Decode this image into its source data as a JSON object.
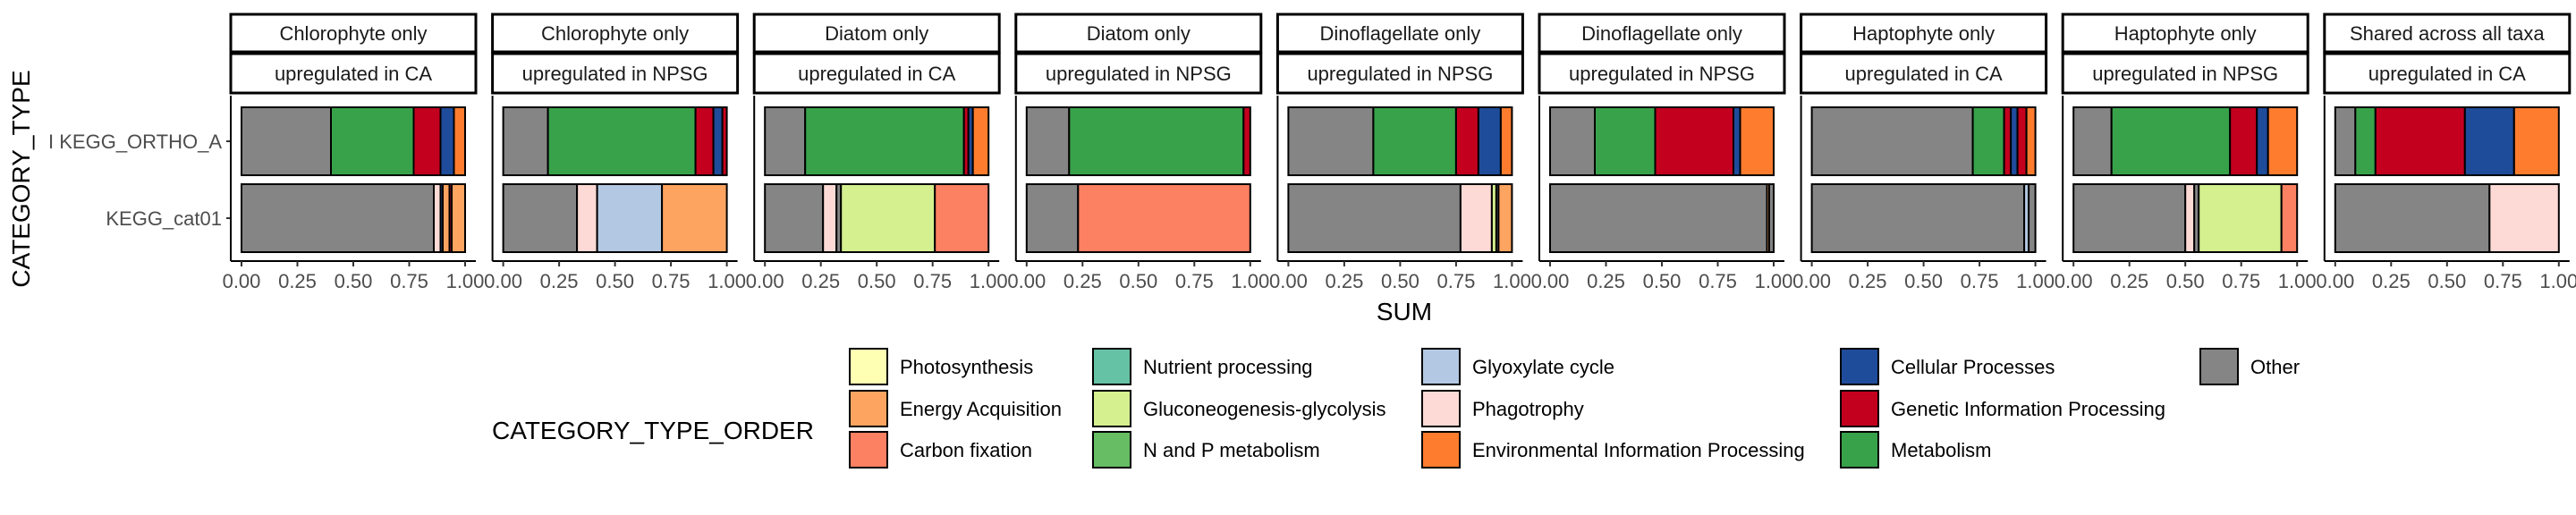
{
  "chart_data": {
    "type": "bar",
    "orientation": "horizontal",
    "stacked": true,
    "xlabel": "SUM",
    "ylabel": "CATEGORY_TYPE",
    "xlim": [
      0,
      1
    ],
    "x_ticks": [
      "0.00",
      "0.25",
      "0.50",
      "0.75",
      "1.00"
    ],
    "categories": [
      "KEGG_ORTHO_A",
      "KEGG_cat01"
    ],
    "category_tick_labels": [
      "I KEGG_ORTHO_A",
      "KEGG_cat01"
    ],
    "legend_title": "CATEGORY_TYPE_ORDER",
    "legend_position": "bottom",
    "legend": [
      {
        "name": "Photosynthesis",
        "color": "#FFFFB3"
      },
      {
        "name": "Energy Acquisition",
        "color": "#FDA460"
      },
      {
        "name": "Carbon fixation",
        "color": "#FC8062"
      },
      {
        "name": "Nutrient processing",
        "color": "#66C2A5"
      },
      {
        "name": "Gluconeogenesis-glycolysis",
        "color": "#D4F08F"
      },
      {
        "name": "N and P metabolism",
        "color": "#66BD63"
      },
      {
        "name": "Glyoxylate cycle",
        "color": "#B3C8E2"
      },
      {
        "name": "Phagotrophy",
        "color": "#FDDAD5"
      },
      {
        "name": "Environmental Information Processing",
        "color": "#FD7C2E"
      },
      {
        "name": "Cellular Processes",
        "color": "#1F4C9A"
      },
      {
        "name": "Genetic Information Processing",
        "color": "#C4001F"
      },
      {
        "name": "Metabolism",
        "color": "#38A24B"
      },
      {
        "name": "Other",
        "color": "#858585"
      }
    ],
    "panels": [
      {
        "strip1": "Chlorophyte only",
        "strip2": "upregulated in CA",
        "bars": {
          "KEGG_ORTHO_A": [
            [
              "Other",
              0.4
            ],
            [
              "Metabolism",
              0.37
            ],
            [
              "Genetic Information Processing",
              0.12
            ],
            [
              "Cellular Processes",
              0.06
            ],
            [
              "Environmental Information Processing",
              0.05
            ]
          ],
          "KEGG_cat01": [
            [
              "Other",
              0.86
            ],
            [
              "Phagotrophy",
              0.03
            ],
            [
              "Cellular Processes",
              0.01
            ],
            [
              "Energy Acquisition",
              0.03
            ],
            [
              "Genetic Information Processing",
              0.01
            ],
            [
              "Energy Acquisition",
              0.06
            ]
          ]
        }
      },
      {
        "strip1": "Chlorophyte only",
        "strip2": "upregulated in NPSG",
        "bars": {
          "KEGG_ORTHO_A": [
            [
              "Other",
              0.2
            ],
            [
              "Metabolism",
              0.66
            ],
            [
              "Genetic Information Processing",
              0.08
            ],
            [
              "Cellular Processes",
              0.04
            ],
            [
              "Genetic Information Processing",
              0.02
            ]
          ],
          "KEGG_cat01": [
            [
              "Other",
              0.33
            ],
            [
              "Phagotrophy",
              0.09
            ],
            [
              "Glyoxylate cycle",
              0.29
            ],
            [
              "Energy Acquisition",
              0.29
            ]
          ]
        }
      },
      {
        "strip1": "Diatom only",
        "strip2": "upregulated in CA",
        "bars": {
          "KEGG_ORTHO_A": [
            [
              "Other",
              0.18
            ],
            [
              "Metabolism",
              0.71
            ],
            [
              "Genetic Information Processing",
              0.02
            ],
            [
              "Cellular Processes",
              0.02
            ],
            [
              "Environmental Information Processing",
              0.07
            ]
          ],
          "KEGG_cat01": [
            [
              "Other",
              0.26
            ],
            [
              "Phagotrophy",
              0.06
            ],
            [
              "Other",
              0.02
            ],
            [
              "Gluconeogenesis-glycolysis",
              0.42
            ],
            [
              "Carbon fixation",
              0.24
            ]
          ]
        }
      },
      {
        "strip1": "Diatom only",
        "strip2": "upregulated in NPSG",
        "bars": {
          "KEGG_ORTHO_A": [
            [
              "Other",
              0.19
            ],
            [
              "Metabolism",
              0.78
            ],
            [
              "Genetic Information Processing",
              0.03
            ]
          ],
          "KEGG_cat01": [
            [
              "Other",
              0.23
            ],
            [
              "Carbon fixation",
              0.77
            ]
          ]
        }
      },
      {
        "strip1": "Dinoflagellate only",
        "strip2": "upregulated in NPSG",
        "bars": {
          "KEGG_ORTHO_A": [
            [
              "Other",
              0.38
            ],
            [
              "Metabolism",
              0.37
            ],
            [
              "Genetic Information Processing",
              0.1
            ],
            [
              "Cellular Processes",
              0.1
            ],
            [
              "Environmental Information Processing",
              0.05
            ]
          ],
          "KEGG_cat01": [
            [
              "Other",
              0.77
            ],
            [
              "Phagotrophy",
              0.14
            ],
            [
              "Gluconeogenesis-glycolysis",
              0.02
            ],
            [
              "Other",
              0.01
            ],
            [
              "Energy Acquisition",
              0.06
            ]
          ]
        }
      },
      {
        "strip1": "Dinoflagellate only",
        "strip2": "upregulated in NPSG",
        "bars": {
          "KEGG_ORTHO_A": [
            [
              "Other",
              0.2
            ],
            [
              "Metabolism",
              0.27
            ],
            [
              "Genetic Information Processing",
              0.35
            ],
            [
              "Cellular Processes",
              0.03
            ],
            [
              "Environmental Information Processing",
              0.15
            ]
          ],
          "KEGG_cat01": [
            [
              "Other",
              0.97
            ],
            [
              "Energy Acquisition",
              0.01
            ],
            [
              "Other",
              0.02
            ]
          ]
        }
      },
      {
        "strip1": "Haptophyte only",
        "strip2": "upregulated in CA",
        "bars": {
          "KEGG_ORTHO_A": [
            [
              "Other",
              0.72
            ],
            [
              "Metabolism",
              0.14
            ],
            [
              "Genetic Information Processing",
              0.03
            ],
            [
              "Cellular Processes",
              0.03
            ],
            [
              "Genetic Information Processing",
              0.04
            ],
            [
              "Environmental Information Processing",
              0.04
            ]
          ],
          "KEGG_cat01": [
            [
              "Other",
              0.95
            ],
            [
              "Glyoxylate cycle",
              0.02
            ],
            [
              "Other",
              0.03
            ]
          ]
        }
      },
      {
        "strip1": "Haptophyte only",
        "strip2": "upregulated in NPSG",
        "bars": {
          "KEGG_ORTHO_A": [
            [
              "Other",
              0.17
            ],
            [
              "Metabolism",
              0.53
            ],
            [
              "Genetic Information Processing",
              0.12
            ],
            [
              "Cellular Processes",
              0.05
            ],
            [
              "Environmental Information Processing",
              0.13
            ]
          ],
          "KEGG_cat01": [
            [
              "Other",
              0.5
            ],
            [
              "Phagotrophy",
              0.04
            ],
            [
              "Other",
              0.02
            ],
            [
              "Gluconeogenesis-glycolysis",
              0.37
            ],
            [
              "Carbon fixation",
              0.07
            ]
          ]
        }
      },
      {
        "strip1": "Shared across all taxa",
        "strip2": "upregulated in CA",
        "bars": {
          "KEGG_ORTHO_A": [
            [
              "Other",
              0.09
            ],
            [
              "Metabolism",
              0.09
            ],
            [
              "Genetic Information Processing",
              0.4
            ],
            [
              "Cellular Processes",
              0.22
            ],
            [
              "Environmental Information Processing",
              0.2
            ]
          ],
          "KEGG_cat01": [
            [
              "Other",
              0.69
            ],
            [
              "Phagotrophy",
              0.31
            ]
          ]
        }
      }
    ]
  }
}
